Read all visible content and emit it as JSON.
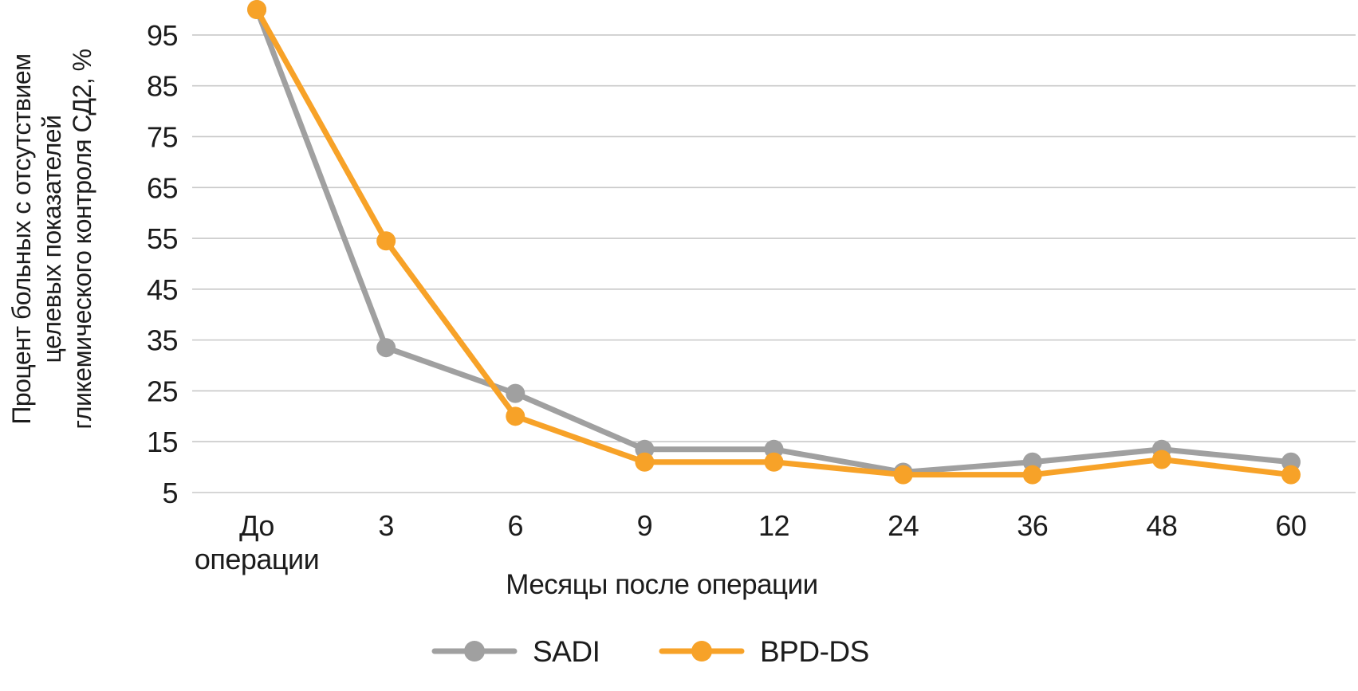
{
  "chart_data": {
    "type": "line",
    "title": "",
    "categories": [
      "До операции",
      "3",
      "6",
      "9",
      "12",
      "24",
      "36",
      "48",
      "60"
    ],
    "series": [
      {
        "name": "SADI",
        "color": "#A0A0A0",
        "values": [
          100,
          33.5,
          24.5,
          13.5,
          13.5,
          9,
          11,
          13.5,
          11
        ]
      },
      {
        "name": "BPD-DS",
        "color": "#F7A228",
        "values": [
          100,
          54.5,
          20,
          11,
          11,
          8.5,
          8.5,
          11.5,
          8.5
        ]
      }
    ],
    "xlabel": "Месяцы после операции",
    "ylabel": "Процент больных с отсутствием целевых показателей гликемического контроля СД2, %",
    "ylabel_lines": [
      "Процент больных с отсутствием",
      "целевых показателей",
      "гликемического контроля СД2, %"
    ],
    "yticks": [
      95,
      85,
      75,
      65,
      55,
      45,
      35,
      25,
      15,
      5
    ],
    "ylim": [
      5,
      100
    ],
    "grid": true,
    "legend_position": "bottom",
    "colors": {
      "gridline": "#C8C8C8",
      "text": "#1C1C1C",
      "background": "#FFFFFF"
    }
  }
}
